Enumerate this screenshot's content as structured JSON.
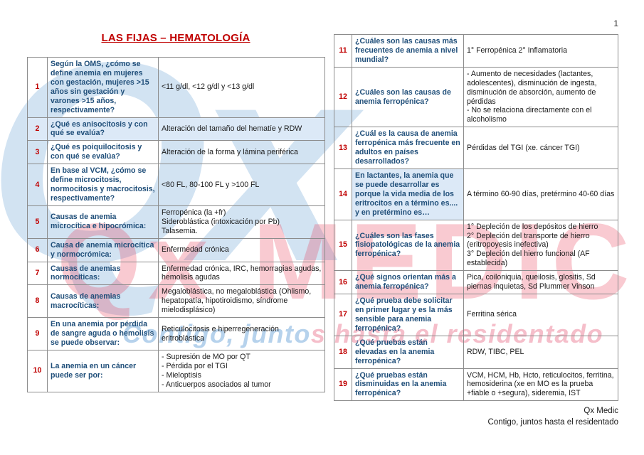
{
  "page_number": "1",
  "title": "LAS FIJAS – HEMATOLOGÍA",
  "watermark": {
    "logo_text": "Qx",
    "brand_text": "Qx MEDIC",
    "tagline_blue": "Contigo, junto",
    "tagline_pink": "s hasta el residentado",
    "colors": {
      "blue": "#aecde9",
      "red": "#e8314d"
    }
  },
  "footer": {
    "line1": "Qx Medic",
    "line2": "Contigo, juntos hasta el residentado"
  },
  "left_table": {
    "rows": [
      {
        "num": "1",
        "question": "Según la OMS, ¿cómo se define anemia en mujeres con gestación, mujeres >15 años sin gestación y varones >15 años, respectivamente?",
        "answer": "<11 g/dl, <12 g/dl y <13 g/dl"
      },
      {
        "num": "2",
        "question": "¿Qué es anisocitosis y con qué se evalúa?",
        "answer": "Alteración del tamaño del hematíe y RDW",
        "shaded": true
      },
      {
        "num": "3",
        "question": "¿Qué es poiquilocitosis y con qué se evalúa?",
        "answer": "Alteración de la forma y lámina periférica"
      },
      {
        "num": "4",
        "question": "En base al VCM, ¿cómo se define microcitosis, normocitosis y macrocitosis, respectivamente?",
        "answer": "<80 FL, 80-100 FL y >100 FL"
      },
      {
        "num": "5",
        "question": "Causas de anemia microcítica e hipocrómica:",
        "answer": "Ferropénica (la +fr)\nSideroblástica (intoxicación por Pb)\nTalasemia."
      },
      {
        "num": "6",
        "question": "Causa de anemia microcítica y normocrómica:",
        "answer": "Enfermedad crónica"
      },
      {
        "num": "7",
        "question": "Causas de anemias normocíticas:",
        "answer": "Enfermedad crónica, IRC, hemorragias agudas, hemolisis agudas"
      },
      {
        "num": "8",
        "question": "Causas de anemias macrocíticas:",
        "answer": "Megaloblástica, no megaloblástica (Ohlismo, hepatopatía, hipotiroidismo, síndrome mielodisplásico)"
      },
      {
        "num": "9",
        "question": "En una anemia por pérdida de sangre aguda o hemolisis se puede observar:",
        "answer": "Reticulocitosis e hiperregeneración eritroblástica"
      },
      {
        "num": "10",
        "question": "La anemia en un cáncer puede ser por:",
        "answer": "- Supresión de MO por QT\n- Pérdida por el TGI\n- Mieloptisis\n- Anticuerpos asociados al tumor"
      }
    ]
  },
  "right_table": {
    "rows": [
      {
        "num": "11",
        "question": "¿Cuáles son las causas más frecuentes de anemia a nivel mundial?",
        "answer": "1° Ferropénica 2° Inflamatoria"
      },
      {
        "num": "12",
        "question": "¿Cuáles son las causas de anemia ferropénica?",
        "answer": "- Aumento de necesidades (lactantes, adolescentes), disminución de ingesta, disminución de absorción, aumento de pérdidas\n- No se relaciona directamente con el alcoholismo"
      },
      {
        "num": "13",
        "question": "¿Cuál es la causa de anemia ferropénica más frecuente en adultos en países desarrollados?",
        "answer": "Pérdidas del TGI (xe. cáncer TGI)"
      },
      {
        "num": "14",
        "question": "En lactantes, la anemia que se puede desarrollar es porque la vida media de los eritrocitos en a término es.... y en pretérmino es…",
        "answer": "A término 60-90 días, pretérmino 40-60 días",
        "shaded_q": true
      },
      {
        "num": "15",
        "question": "¿Cuáles son las fases fisiopatológicas de la anemia ferropénica?",
        "answer": "1° Depleción de los depósitos de hierro\n2° Depleción del transporte de hierro (eritropoyesis inefectiva)\n3° Depleción del hierro funcional (AF establecida)"
      },
      {
        "num": "16",
        "question": "¿Qué signos orientan más a anemia ferropénica?",
        "answer": "Pica, coiloniquia, queilosis, glositis, Sd piernas inquietas, Sd Plummer Vinson"
      },
      {
        "num": "17",
        "question": "¿Qué prueba debe solicitar en primer lugar y es la más sensible para anemia ferropénica?",
        "answer": "Ferritina sérica"
      },
      {
        "num": "18",
        "question": "¿Qué pruebas están elevadas en la anemia ferropénica?",
        "answer": "RDW, TIBC, PEL"
      },
      {
        "num": "19",
        "question": "¿Qué pruebas están disminuidas en la anemia ferropénica?",
        "answer": "VCM, HCM, Hb, Hcto, reticulocitos, ferritina, hemosiderina (xe en MO es la prueba +fiable o +segura), sideremia, IST"
      }
    ]
  }
}
